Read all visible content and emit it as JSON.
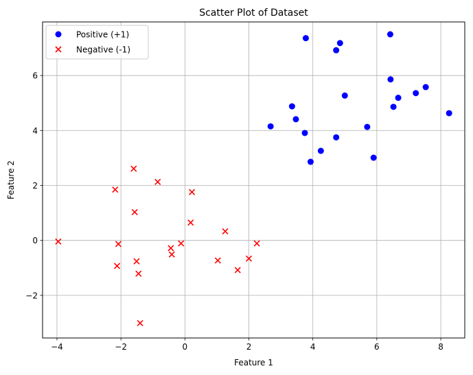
{
  "chart_data": {
    "type": "scatter",
    "title": "Scatter Plot of Dataset",
    "xlabel": "Feature 1",
    "ylabel": "Feature 2",
    "xlim": [
      -4.45,
      8.75
    ],
    "ylim": [
      -3.55,
      7.95
    ],
    "xticks": [
      -4,
      -2,
      0,
      2,
      4,
      6,
      8
    ],
    "yticks": [
      -2,
      0,
      2,
      4,
      6
    ],
    "grid": true,
    "legend_position": "top-left",
    "series": [
      {
        "name": "Positive (+1)",
        "marker": "circle",
        "color": "#0000ff",
        "points": [
          [
            3.78,
            7.36
          ],
          [
            4.85,
            7.18
          ],
          [
            4.73,
            6.92
          ],
          [
            6.42,
            7.5
          ],
          [
            6.43,
            5.86
          ],
          [
            7.53,
            5.58
          ],
          [
            7.22,
            5.36
          ],
          [
            6.67,
            5.19
          ],
          [
            5.0,
            5.27
          ],
          [
            6.52,
            4.86
          ],
          [
            8.26,
            4.63
          ],
          [
            3.35,
            4.88
          ],
          [
            3.47,
            4.41
          ],
          [
            2.68,
            4.15
          ],
          [
            5.7,
            4.13
          ],
          [
            3.75,
            3.91
          ],
          [
            4.73,
            3.75
          ],
          [
            4.25,
            3.26
          ],
          [
            5.9,
            3.01
          ],
          [
            3.93,
            2.86
          ]
        ]
      },
      {
        "name": "Negative (-1)",
        "marker": "x",
        "color": "#ff0000",
        "points": [
          [
            -1.6,
            2.61
          ],
          [
            -0.85,
            2.13
          ],
          [
            -2.18,
            1.85
          ],
          [
            0.22,
            1.76
          ],
          [
            -1.57,
            1.03
          ],
          [
            0.18,
            0.65
          ],
          [
            1.26,
            0.33
          ],
          [
            -3.96,
            -0.04
          ],
          [
            -2.08,
            -0.13
          ],
          [
            -0.12,
            -0.11
          ],
          [
            2.25,
            -0.11
          ],
          [
            -0.44,
            -0.28
          ],
          [
            -0.41,
            -0.51
          ],
          [
            2.0,
            -0.66
          ],
          [
            1.03,
            -0.73
          ],
          [
            -1.51,
            -0.76
          ],
          [
            -2.12,
            -0.93
          ],
          [
            1.65,
            -1.08
          ],
          [
            -1.45,
            -1.21
          ],
          [
            -1.4,
            -3.01
          ]
        ]
      }
    ]
  }
}
